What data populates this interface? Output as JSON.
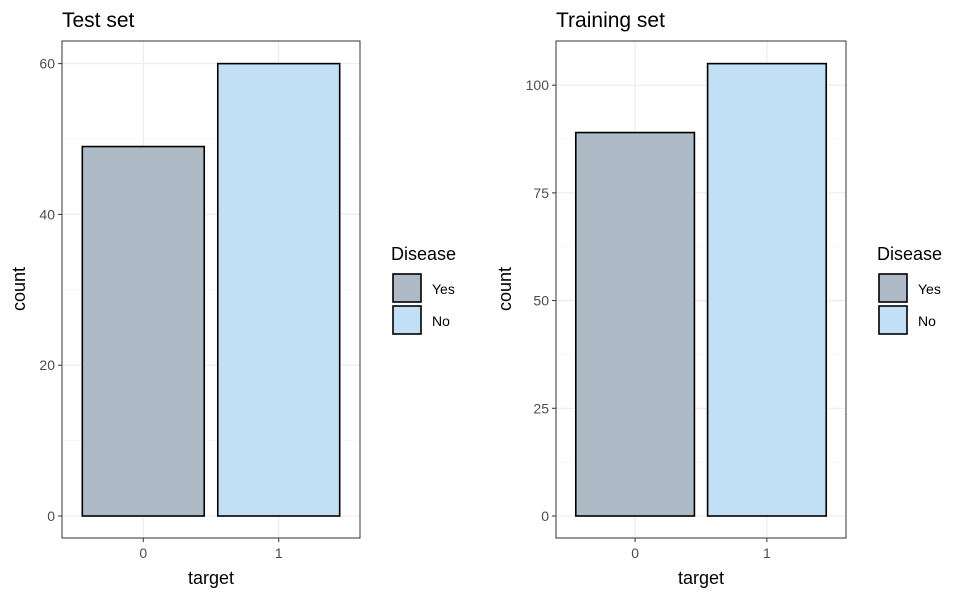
{
  "chart_data": [
    {
      "type": "bar",
      "title": "Test set",
      "xlabel": "target",
      "ylabel": "count",
      "categories": [
        "0",
        "1"
      ],
      "values": [
        49,
        60
      ],
      "ylim": [
        0,
        63
      ],
      "yticks": [
        0,
        20,
        40,
        60
      ],
      "bar_colors": [
        "#aebbc6",
        "#c2e0f5"
      ],
      "grid": true,
      "legend": {
        "title": "Disease",
        "placement": "right",
        "entries": [
          {
            "label": "Yes",
            "color": "#aebbc6"
          },
          {
            "label": "No",
            "color": "#c2e0f5"
          }
        ]
      }
    },
    {
      "type": "bar",
      "title": "Training set",
      "xlabel": "target",
      "ylabel": "count",
      "categories": [
        "0",
        "1"
      ],
      "values": [
        89,
        105
      ],
      "ylim": [
        0,
        110.25
      ],
      "yticks": [
        0,
        25,
        50,
        75,
        100
      ],
      "bar_colors": [
        "#aebbc6",
        "#c2e0f5"
      ],
      "grid": true,
      "legend": {
        "title": "Disease",
        "placement": "right",
        "entries": [
          {
            "label": "Yes",
            "color": "#aebbc6"
          },
          {
            "label": "No",
            "color": "#c2e0f5"
          }
        ]
      }
    }
  ]
}
